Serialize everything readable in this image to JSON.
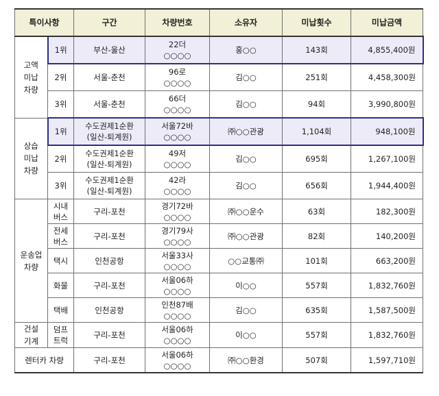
{
  "headers": [
    "특이사항",
    "구간",
    "차량번호",
    "소유자",
    "미납횟수",
    "미납금액"
  ],
  "groups": {
    "g1": "고액\n미납\n차량",
    "g2": "상습\n미납\n차량",
    "g3": "운송업\n차량",
    "g4": "건설\n기계",
    "g5": "렌터카 차량"
  },
  "rows": [
    {
      "sub": "1위",
      "route": "부산-울산",
      "plate1": "22더",
      "plate2": "○○○○",
      "owner": "홍○○",
      "count": "143회",
      "amount": "4,855,400원"
    },
    {
      "sub": "2위",
      "route": "서울-춘천",
      "plate1": "96로",
      "plate2": "○○○○",
      "owner": "김○○",
      "count": "251회",
      "amount": "4,458,300원"
    },
    {
      "sub": "3위",
      "route": "서울-춘천",
      "plate1": "66더",
      "plate2": "○○○○",
      "owner": "김○○",
      "count": "94회",
      "amount": "3,990,800원"
    },
    {
      "sub": "1위",
      "route1": "수도권제1순환",
      "route2": "(일산-퇴계원)",
      "plate1": "서울72바",
      "plate2": "○○○○",
      "owner": "㈜○○관광",
      "count": "1,104회",
      "amount": "948,100원"
    },
    {
      "sub": "2위",
      "route1": "수도권제1순환",
      "route2": "(일산-퇴계원)",
      "plate1": "49저",
      "plate2": "○○○○",
      "owner": "김○○",
      "count": "695회",
      "amount": "1,267,100원"
    },
    {
      "sub": "3위",
      "route1": "수도권제1순환",
      "route2": "(일산-퇴계원)",
      "plate1": "42라",
      "plate2": "○○○○",
      "owner": "김○○",
      "count": "656회",
      "amount": "1,944,400원"
    },
    {
      "sub": "시내\n버스",
      "route": "구리-포천",
      "plate1": "경기72바",
      "plate2": "○○○○",
      "owner": "㈜○○운수",
      "count": "63회",
      "amount": "182,300원"
    },
    {
      "sub": "전세\n버스",
      "route": "구리-포천",
      "plate1": "경기79사",
      "plate2": "○○○○",
      "owner": "㈜○○관광",
      "count": "82회",
      "amount": "140,200원"
    },
    {
      "sub": "택시",
      "route": "인천공항",
      "plate1": "서울33사",
      "plate2": "○○○○",
      "owner": "○○교통㈜",
      "count": "101회",
      "amount": "663,200원"
    },
    {
      "sub": "화물",
      "route": "구리-포천",
      "plate1": "서울06하",
      "plate2": "○○○○",
      "owner": "이○○",
      "count": "557회",
      "amount": "1,832,760원"
    },
    {
      "sub": "택배",
      "route": "인천공항",
      "plate1": "인천87배",
      "plate2": "○○○○",
      "owner": "김○○",
      "count": "635회",
      "amount": "1,587,500원"
    },
    {
      "sub": "덤프\n트럭",
      "route": "구리-포천",
      "plate1": "서울06하",
      "plate2": "○○○○",
      "owner": "이○○",
      "count": "557회",
      "amount": "1,832,760원"
    },
    {
      "route": "구리-포천",
      "plate1": "서울06하",
      "plate2": "○○○○",
      "owner": "㈜○○환경",
      "count": "507회",
      "amount": "1,597,710원"
    }
  ]
}
